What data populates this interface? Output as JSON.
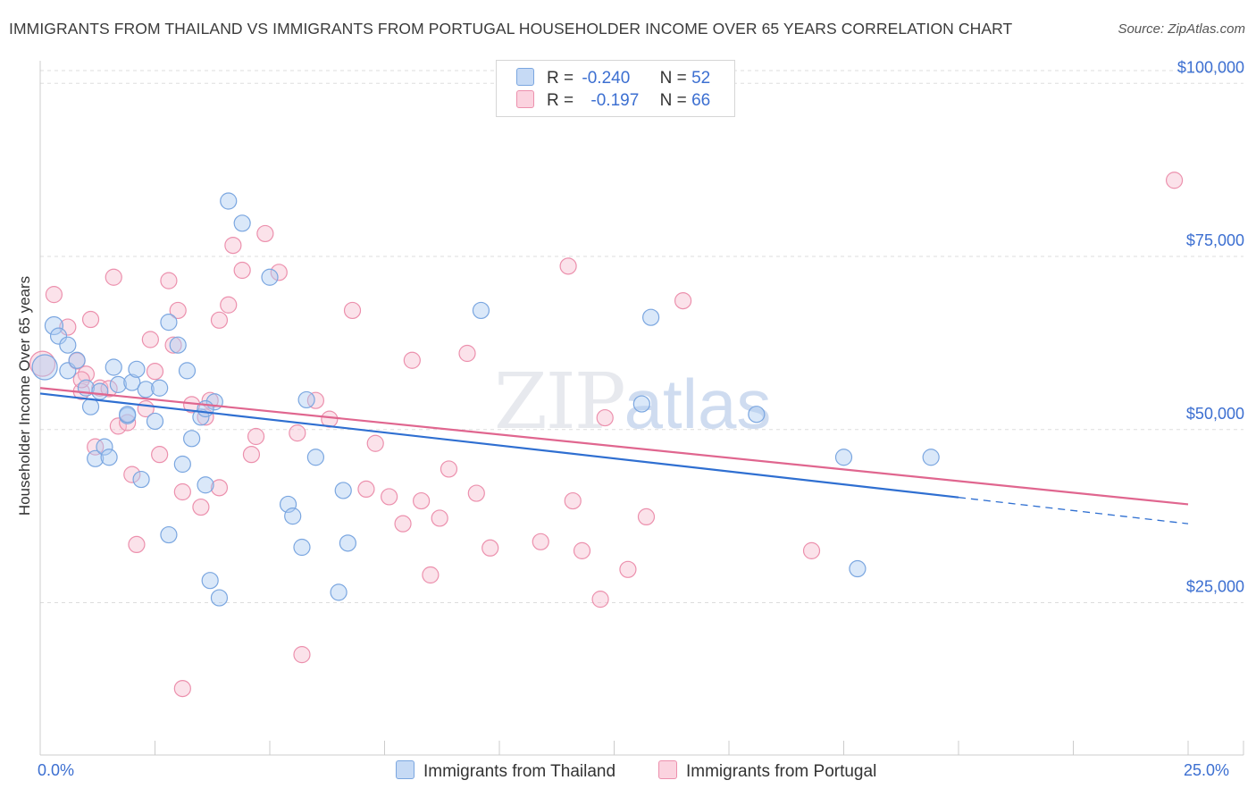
{
  "header": {
    "title": "IMMIGRANTS FROM THAILAND VS IMMIGRANTS FROM PORTUGAL HOUSEHOLDER INCOME OVER 65 YEARS CORRELATION CHART",
    "source": "Source: ZipAtlas.com"
  },
  "watermark": {
    "zip": "ZIP",
    "atlas": "atlas"
  },
  "legend": {
    "r_label": "R =",
    "n_label": "N =",
    "rows": [
      {
        "r": "-0.240",
        "n": "52"
      },
      {
        "r": "-0.197",
        "n": "66"
      }
    ]
  },
  "colors": {
    "thailand_fill": "#aecbf2",
    "thailand_stroke": "#7aa6e0",
    "thailand_line": "#2f6fd1",
    "portugal_fill": "#f7bfd0",
    "portugal_stroke": "#ec90ad",
    "portugal_line": "#e0668f",
    "axis_label": "#3c6fd1",
    "grid": "#dddddd"
  },
  "chart_data": {
    "type": "scatter",
    "xlabel": "",
    "ylabel": "Householder Income Over 65 years",
    "xlim": [
      0,
      25
    ],
    "ylim": [
      3000,
      103000
    ],
    "x_tick_labels": {
      "min": "0.0%",
      "max": "25.0%"
    },
    "y_ticks": [
      25000,
      50000,
      75000,
      100000
    ],
    "y_tick_labels": [
      "$25,000",
      "$50,000",
      "$75,000",
      "$100,000"
    ],
    "grid": "horizontal dashed",
    "legend_placement": "top-center",
    "series": [
      {
        "name": "Immigrants from Thailand",
        "trend": {
          "x0": 0,
          "y0": 55200,
          "x1": 20,
          "y1": 40200,
          "dashed_to_x": 25,
          "dashed_to_y": 36400
        },
        "points": [
          [
            0.1,
            59000,
            14
          ],
          [
            0.3,
            65000,
            10
          ],
          [
            0.4,
            63500,
            9
          ],
          [
            0.6,
            58500,
            9
          ],
          [
            0.6,
            62200,
            9
          ],
          [
            0.8,
            60000,
            9
          ],
          [
            1.0,
            56000,
            9
          ],
          [
            1.1,
            53300,
            9
          ],
          [
            1.2,
            45800,
            9
          ],
          [
            1.3,
            55500,
            9
          ],
          [
            1.4,
            47500,
            9
          ],
          [
            1.5,
            46000,
            9
          ],
          [
            1.6,
            59000,
            9
          ],
          [
            1.7,
            56500,
            9
          ],
          [
            1.9,
            52000,
            9
          ],
          [
            2.0,
            56800,
            9
          ],
          [
            2.1,
            58700,
            9
          ],
          [
            2.2,
            42800,
            9
          ],
          [
            2.3,
            55800,
            9
          ],
          [
            2.5,
            51200,
            9
          ],
          [
            2.6,
            56000,
            9
          ],
          [
            2.8,
            34800,
            9
          ],
          [
            2.8,
            65500,
            9
          ],
          [
            3.0,
            62200,
            9
          ],
          [
            3.1,
            45000,
            9
          ],
          [
            3.2,
            58500,
            9
          ],
          [
            3.3,
            48700,
            9
          ],
          [
            3.5,
            51800,
            9
          ],
          [
            3.6,
            42000,
            9
          ],
          [
            3.7,
            28200,
            9
          ],
          [
            3.8,
            54000,
            9
          ],
          [
            3.9,
            25700,
            9
          ],
          [
            4.1,
            83000,
            9
          ],
          [
            4.4,
            79800,
            9
          ],
          [
            5.0,
            72000,
            9
          ],
          [
            5.4,
            39200,
            9
          ],
          [
            5.5,
            37500,
            9
          ],
          [
            5.7,
            33000,
            9
          ],
          [
            5.8,
            54300,
            9
          ],
          [
            6.0,
            46000,
            9
          ],
          [
            6.6,
            41200,
            9
          ],
          [
            6.7,
            33600,
            9
          ],
          [
            6.5,
            26500,
            9
          ],
          [
            9.6,
            67200,
            9
          ],
          [
            13.1,
            53700,
            9
          ],
          [
            13.3,
            66200,
            9
          ],
          [
            15.6,
            52200,
            9
          ],
          [
            17.5,
            46000,
            9
          ],
          [
            19.4,
            46000,
            9
          ],
          [
            17.8,
            29900,
            9
          ],
          [
            1.9,
            52200,
            9
          ],
          [
            3.6,
            53000,
            9
          ]
        ]
      },
      {
        "name": "Immigrants from Portugal",
        "trend": {
          "x0": 0,
          "y0": 56000,
          "x1": 25,
          "y1": 39200
        },
        "points": [
          [
            0.05,
            59500,
            14
          ],
          [
            0.3,
            69500,
            9
          ],
          [
            0.6,
            64800,
            9
          ],
          [
            0.8,
            59900,
            9
          ],
          [
            0.9,
            55500,
            9
          ],
          [
            1.0,
            58000,
            9
          ],
          [
            1.1,
            65900,
            9
          ],
          [
            1.2,
            47500,
            9
          ],
          [
            1.3,
            56000,
            9
          ],
          [
            1.5,
            55900,
            9
          ],
          [
            1.6,
            72000,
            9
          ],
          [
            1.7,
            50500,
            9
          ],
          [
            1.9,
            51000,
            9
          ],
          [
            2.0,
            43500,
            9
          ],
          [
            2.1,
            33400,
            9
          ],
          [
            2.3,
            53000,
            9
          ],
          [
            2.4,
            63000,
            9
          ],
          [
            2.5,
            58400,
            9
          ],
          [
            2.6,
            46400,
            9
          ],
          [
            2.8,
            71500,
            9
          ],
          [
            2.9,
            62200,
            9
          ],
          [
            3.0,
            67200,
            9
          ],
          [
            3.1,
            41000,
            9
          ],
          [
            3.3,
            53600,
            9
          ],
          [
            3.5,
            38800,
            9
          ],
          [
            3.6,
            51800,
            9
          ],
          [
            3.7,
            54200,
            9
          ],
          [
            3.9,
            41600,
            9
          ],
          [
            3.9,
            65800,
            9
          ],
          [
            4.1,
            68000,
            9
          ],
          [
            4.2,
            76600,
            9
          ],
          [
            4.4,
            73000,
            9
          ],
          [
            4.6,
            46400,
            9
          ],
          [
            4.7,
            49000,
            9
          ],
          [
            4.9,
            78300,
            9
          ],
          [
            5.2,
            72700,
            9
          ],
          [
            5.6,
            49500,
            9
          ],
          [
            5.7,
            17500,
            9
          ],
          [
            6.0,
            54200,
            9
          ],
          [
            6.3,
            51500,
            9
          ],
          [
            6.8,
            67200,
            9
          ],
          [
            7.1,
            41400,
            9
          ],
          [
            7.3,
            48000,
            9
          ],
          [
            7.6,
            40300,
            9
          ],
          [
            7.9,
            36400,
            9
          ],
          [
            8.1,
            60000,
            9
          ],
          [
            8.3,
            39700,
            9
          ],
          [
            8.5,
            29000,
            9
          ],
          [
            8.7,
            37200,
            9
          ],
          [
            8.9,
            44300,
            9
          ],
          [
            9.3,
            61000,
            9
          ],
          [
            9.5,
            40800,
            9
          ],
          [
            9.8,
            32900,
            9
          ],
          [
            10.9,
            33800,
            9
          ],
          [
            11.5,
            73600,
            9
          ],
          [
            11.6,
            39700,
            9
          ],
          [
            11.8,
            32500,
            9
          ],
          [
            12.3,
            51700,
            9
          ],
          [
            12.8,
            29800,
            9
          ],
          [
            13.2,
            37400,
            9
          ],
          [
            14.0,
            68600,
            9
          ],
          [
            16.8,
            32500,
            9
          ],
          [
            12.2,
            25500,
            9
          ],
          [
            3.1,
            12600,
            9
          ],
          [
            24.7,
            86000,
            9
          ],
          [
            0.9,
            57200,
            9
          ]
        ]
      }
    ]
  },
  "bottom_legend": [
    {
      "label": "Immigrants from Thailand"
    },
    {
      "label": "Immigrants from Portugal"
    }
  ]
}
